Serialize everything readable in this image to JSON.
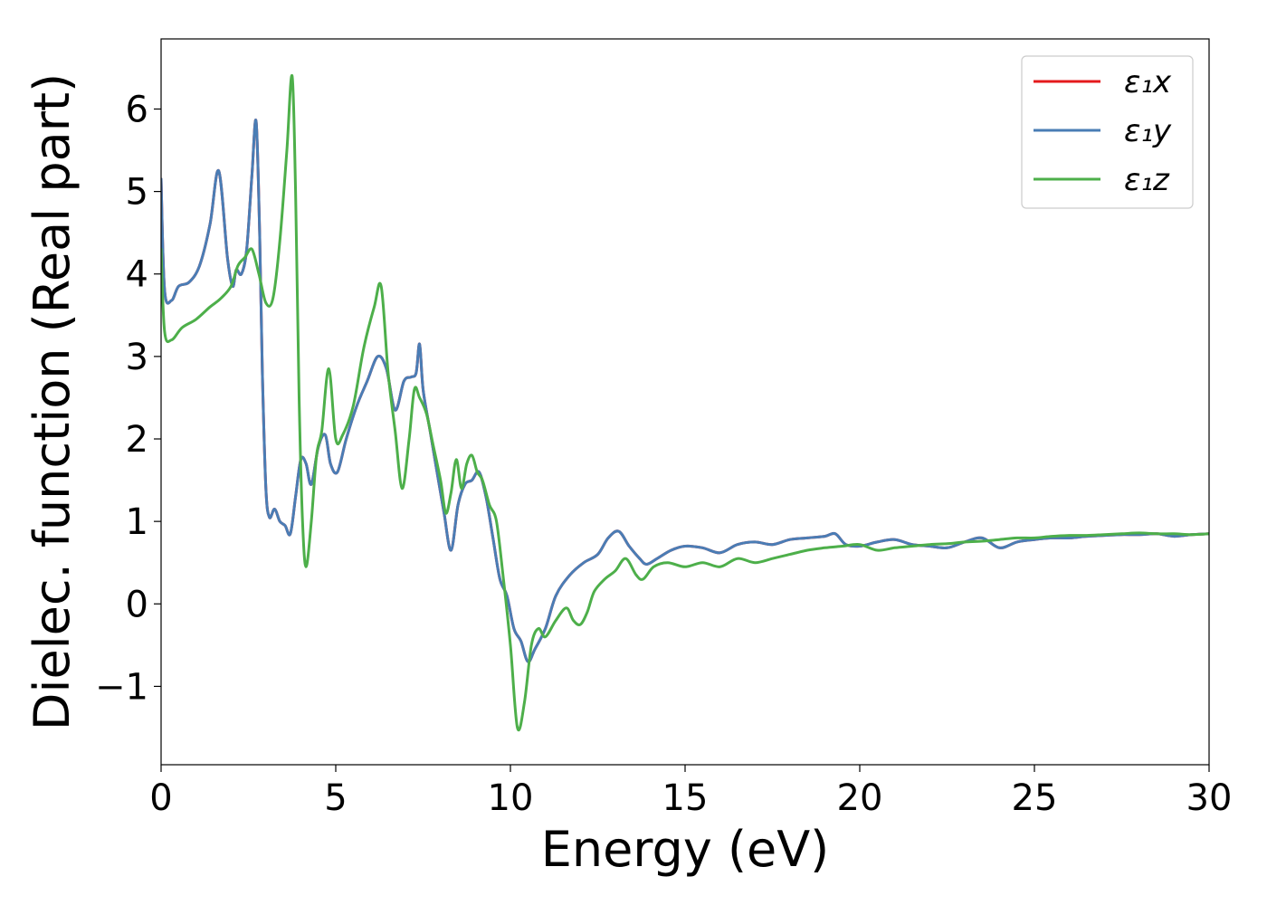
{
  "chart_data": {
    "type": "line",
    "title": "",
    "xlabel": "Energy (eV)",
    "ylabel": "Dielec. function (Real part)",
    "xlim": [
      0,
      30
    ],
    "ylim": [
      -1.95,
      6.85
    ],
    "xticks": [
      0,
      5,
      10,
      15,
      20,
      25,
      30
    ],
    "xtick_labels": [
      "0",
      "5",
      "10",
      "15",
      "20",
      "25",
      "30"
    ],
    "yticks": [
      -1,
      0,
      1,
      2,
      3,
      4,
      5,
      6
    ],
    "ytick_labels": [
      "−1",
      "0",
      "1",
      "2",
      "3",
      "4",
      "5",
      "6"
    ],
    "grid": false,
    "legend_position": "top-right",
    "series": [
      {
        "name": "ε₁x",
        "color": "#e41a1c",
        "x": [
          0,
          0.1,
          0.3,
          0.5,
          0.8,
          1.1,
          1.4,
          1.65,
          1.9,
          2.05,
          2.15,
          2.3,
          2.45,
          2.6,
          2.72,
          2.82,
          2.9,
          3.0,
          3.1,
          3.25,
          3.4,
          3.55,
          3.7,
          3.85,
          4.0,
          4.15,
          4.3,
          4.5,
          4.7,
          4.85,
          5.05,
          5.3,
          5.6,
          5.9,
          6.2,
          6.45,
          6.7,
          6.95,
          7.15,
          7.3,
          7.4,
          7.5,
          7.7,
          7.9,
          8.1,
          8.3,
          8.5,
          8.7,
          8.9,
          9.1,
          9.3,
          9.5,
          9.7,
          9.9,
          10.1,
          10.3,
          10.5,
          10.7,
          11.0,
          11.3,
          11.7,
          12.1,
          12.5,
          12.8,
          13.1,
          13.4,
          13.7,
          13.9,
          14.2,
          14.6,
          15.0,
          15.5,
          16.0,
          16.5,
          17.0,
          17.5,
          18.0,
          18.5,
          19.0,
          19.3,
          19.6,
          20.0,
          20.5,
          21.0,
          21.5,
          22.0,
          22.5,
          23.0,
          23.5,
          24.0,
          24.5,
          25.0,
          25.5,
          26.0,
          26.5,
          27.0,
          27.5,
          28.0,
          28.5,
          29.0,
          29.5,
          30.0
        ],
        "y": [
          5.15,
          3.8,
          3.68,
          3.85,
          3.9,
          4.1,
          4.6,
          5.25,
          4.2,
          3.85,
          4.05,
          4.0,
          4.3,
          5.2,
          5.85,
          4.5,
          2.8,
          1.4,
          1.05,
          1.15,
          1.0,
          0.95,
          0.85,
          1.3,
          1.75,
          1.7,
          1.45,
          1.9,
          2.05,
          1.7,
          1.6,
          2.0,
          2.4,
          2.7,
          3.0,
          2.85,
          2.35,
          2.7,
          2.75,
          2.8,
          3.15,
          2.6,
          2.1,
          1.6,
          1.1,
          0.65,
          1.2,
          1.45,
          1.5,
          1.6,
          1.3,
          0.8,
          0.3,
          0.1,
          -0.3,
          -0.45,
          -0.7,
          -0.55,
          -0.3,
          0.1,
          0.35,
          0.5,
          0.6,
          0.8,
          0.88,
          0.7,
          0.55,
          0.48,
          0.55,
          0.65,
          0.7,
          0.68,
          0.62,
          0.72,
          0.75,
          0.72,
          0.78,
          0.8,
          0.82,
          0.85,
          0.72,
          0.7,
          0.75,
          0.78,
          0.72,
          0.7,
          0.68,
          0.75,
          0.8,
          0.68,
          0.75,
          0.78,
          0.8,
          0.8,
          0.82,
          0.83,
          0.84,
          0.84,
          0.85,
          0.82,
          0.84,
          0.85
        ]
      },
      {
        "name": "ε₁y",
        "color": "#4a7db5",
        "x": [
          0,
          0.1,
          0.3,
          0.5,
          0.8,
          1.1,
          1.4,
          1.65,
          1.9,
          2.05,
          2.15,
          2.3,
          2.45,
          2.6,
          2.72,
          2.82,
          2.9,
          3.0,
          3.1,
          3.25,
          3.4,
          3.55,
          3.7,
          3.85,
          4.0,
          4.15,
          4.3,
          4.5,
          4.7,
          4.85,
          5.05,
          5.3,
          5.6,
          5.9,
          6.2,
          6.45,
          6.7,
          6.95,
          7.15,
          7.3,
          7.4,
          7.5,
          7.7,
          7.9,
          8.1,
          8.3,
          8.5,
          8.7,
          8.9,
          9.1,
          9.3,
          9.5,
          9.7,
          9.9,
          10.1,
          10.3,
          10.5,
          10.7,
          11.0,
          11.3,
          11.7,
          12.1,
          12.5,
          12.8,
          13.1,
          13.4,
          13.7,
          13.9,
          14.2,
          14.6,
          15.0,
          15.5,
          16.0,
          16.5,
          17.0,
          17.5,
          18.0,
          18.5,
          19.0,
          19.3,
          19.6,
          20.0,
          20.5,
          21.0,
          21.5,
          22.0,
          22.5,
          23.0,
          23.5,
          24.0,
          24.5,
          25.0,
          25.5,
          26.0,
          26.5,
          27.0,
          27.5,
          28.0,
          28.5,
          29.0,
          29.5,
          30.0
        ],
        "y": [
          5.15,
          3.8,
          3.68,
          3.85,
          3.9,
          4.1,
          4.6,
          5.25,
          4.2,
          3.85,
          4.05,
          4.0,
          4.3,
          5.2,
          5.85,
          4.5,
          2.8,
          1.4,
          1.05,
          1.15,
          1.0,
          0.95,
          0.85,
          1.3,
          1.75,
          1.7,
          1.45,
          1.9,
          2.05,
          1.7,
          1.6,
          2.0,
          2.4,
          2.7,
          3.0,
          2.85,
          2.35,
          2.7,
          2.75,
          2.8,
          3.15,
          2.6,
          2.1,
          1.6,
          1.1,
          0.65,
          1.2,
          1.45,
          1.5,
          1.6,
          1.3,
          0.8,
          0.3,
          0.1,
          -0.3,
          -0.45,
          -0.7,
          -0.55,
          -0.3,
          0.1,
          0.35,
          0.5,
          0.6,
          0.8,
          0.88,
          0.7,
          0.55,
          0.48,
          0.55,
          0.65,
          0.7,
          0.68,
          0.62,
          0.72,
          0.75,
          0.72,
          0.78,
          0.8,
          0.82,
          0.85,
          0.72,
          0.7,
          0.75,
          0.78,
          0.72,
          0.7,
          0.68,
          0.75,
          0.8,
          0.68,
          0.75,
          0.78,
          0.8,
          0.8,
          0.82,
          0.83,
          0.84,
          0.84,
          0.85,
          0.82,
          0.84,
          0.85
        ]
      },
      {
        "name": "ε₁z",
        "color": "#4daf4a",
        "x": [
          0,
          0.1,
          0.3,
          0.6,
          1.0,
          1.4,
          1.7,
          2.0,
          2.2,
          2.4,
          2.6,
          2.8,
          3.0,
          3.2,
          3.4,
          3.6,
          3.75,
          3.85,
          3.95,
          4.05,
          4.15,
          4.3,
          4.45,
          4.6,
          4.8,
          5.0,
          5.2,
          5.5,
          5.8,
          6.1,
          6.3,
          6.5,
          6.7,
          6.9,
          7.1,
          7.25,
          7.4,
          7.6,
          7.8,
          8.0,
          8.15,
          8.3,
          8.45,
          8.6,
          8.75,
          8.9,
          9.05,
          9.2,
          9.4,
          9.6,
          9.8,
          10.0,
          10.2,
          10.4,
          10.6,
          10.8,
          11.0,
          11.3,
          11.6,
          11.8,
          12.0,
          12.2,
          12.4,
          12.7,
          13.0,
          13.3,
          13.6,
          13.8,
          14.1,
          14.5,
          15.0,
          15.5,
          16.0,
          16.5,
          17.0,
          17.5,
          18.0,
          18.5,
          19.0,
          19.5,
          20.0,
          20.5,
          21.0,
          21.5,
          22.0,
          22.5,
          23.0,
          23.5,
          24.0,
          24.5,
          25.0,
          25.5,
          26.0,
          26.5,
          27.0,
          27.5,
          28.0,
          28.5,
          29.0,
          29.5,
          30.0
        ],
        "y": [
          4.3,
          3.3,
          3.2,
          3.35,
          3.45,
          3.6,
          3.7,
          3.85,
          4.1,
          4.2,
          4.3,
          4.0,
          3.65,
          3.7,
          4.4,
          5.5,
          6.4,
          5.0,
          2.5,
          1.0,
          0.45,
          1.0,
          1.8,
          2.1,
          2.85,
          2.0,
          2.05,
          2.4,
          3.1,
          3.6,
          3.85,
          2.8,
          2.1,
          1.4,
          2.0,
          2.6,
          2.5,
          2.3,
          1.9,
          1.5,
          1.1,
          1.35,
          1.75,
          1.4,
          1.7,
          1.8,
          1.6,
          1.5,
          1.2,
          1.0,
          0.3,
          -0.5,
          -1.5,
          -1.2,
          -0.5,
          -0.3,
          -0.4,
          -0.2,
          -0.05,
          -0.2,
          -0.25,
          -0.1,
          0.15,
          0.3,
          0.4,
          0.55,
          0.35,
          0.3,
          0.45,
          0.5,
          0.45,
          0.5,
          0.45,
          0.55,
          0.5,
          0.55,
          0.6,
          0.65,
          0.68,
          0.7,
          0.72,
          0.65,
          0.68,
          0.7,
          0.72,
          0.73,
          0.75,
          0.76,
          0.78,
          0.8,
          0.8,
          0.82,
          0.83,
          0.83,
          0.84,
          0.85,
          0.86,
          0.85,
          0.85,
          0.84,
          0.85
        ]
      }
    ]
  }
}
